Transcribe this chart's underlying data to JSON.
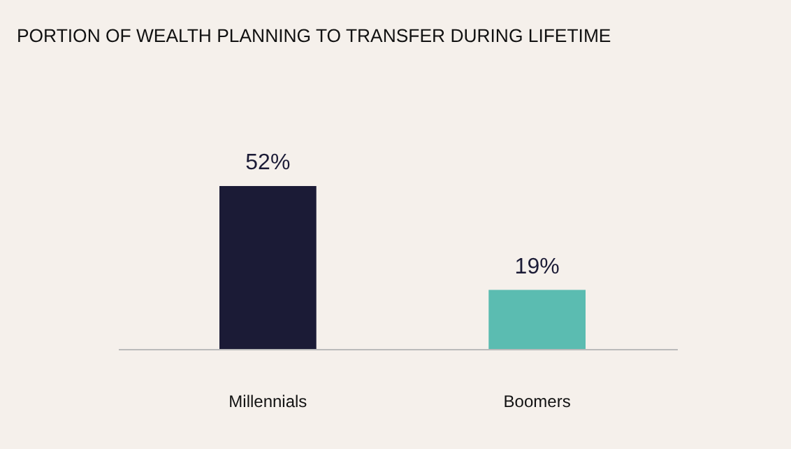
{
  "chart_data": {
    "type": "bar",
    "title": "PORTION OF WEALTH PLANNING TO TRANSFER DURING LIFETIME",
    "categories": [
      "Millennials",
      "Boomers"
    ],
    "values": [
      52,
      19
    ],
    "colors": [
      "#1b1b36",
      "#5bbcb1"
    ],
    "value_labels": [
      "52%",
      "19%"
    ],
    "tick_labels": "x"
  }
}
